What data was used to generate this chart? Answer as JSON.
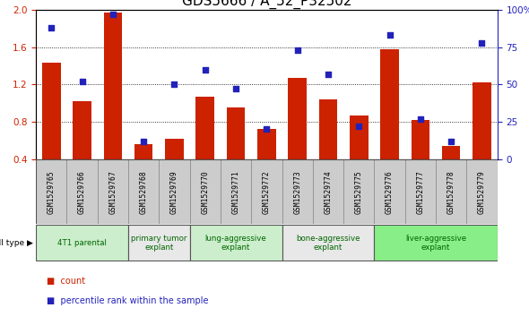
{
  "title": "GDS5666 / A_52_P32502",
  "samples": [
    "GSM1529765",
    "GSM1529766",
    "GSM1529767",
    "GSM1529768",
    "GSM1529769",
    "GSM1529770",
    "GSM1529771",
    "GSM1529772",
    "GSM1529773",
    "GSM1529774",
    "GSM1529775",
    "GSM1529776",
    "GSM1529777",
    "GSM1529778",
    "GSM1529779"
  ],
  "bar_values": [
    1.43,
    1.02,
    1.97,
    0.56,
    0.62,
    1.07,
    0.95,
    0.72,
    1.27,
    1.04,
    0.87,
    1.58,
    0.82,
    0.54,
    1.22
  ],
  "dot_values": [
    88,
    52,
    97,
    12,
    50,
    60,
    47,
    20,
    73,
    57,
    22,
    83,
    27,
    12,
    78
  ],
  "ylim_left": [
    0.4,
    2.0
  ],
  "ylim_right": [
    0,
    100
  ],
  "yticks_left": [
    0.4,
    0.8,
    1.2,
    1.6,
    2.0
  ],
  "yticks_right": [
    0,
    25,
    50,
    75,
    100
  ],
  "bar_color": "#cc2200",
  "dot_color": "#2222bb",
  "cell_groups": [
    {
      "label": "4T1 parental",
      "start": 0,
      "end": 3,
      "color": "#cceecc"
    },
    {
      "label": "primary tumor\nexplant",
      "start": 3,
      "end": 5,
      "color": "#e8e8e8"
    },
    {
      "label": "lung-aggressive\nexplant",
      "start": 5,
      "end": 8,
      "color": "#cceecc"
    },
    {
      "label": "bone-aggressive\nexplant",
      "start": 8,
      "end": 11,
      "color": "#e8e8e8"
    },
    {
      "label": "liver-aggressive\nexplant",
      "start": 11,
      "end": 15,
      "color": "#88ee88"
    }
  ],
  "sample_row_color": "#cccccc",
  "legend_count_label": "count",
  "legend_percentile_label": "percentile rank within the sample",
  "cell_type_label": "cell type",
  "background_color": "#ffffff",
  "plot_bg_color": "#ffffff",
  "tick_label_color_left": "#cc2200",
  "tick_label_color_right": "#2222bb",
  "title_fontsize": 11,
  "tick_fontsize": 7.5,
  "bar_width": 0.6
}
